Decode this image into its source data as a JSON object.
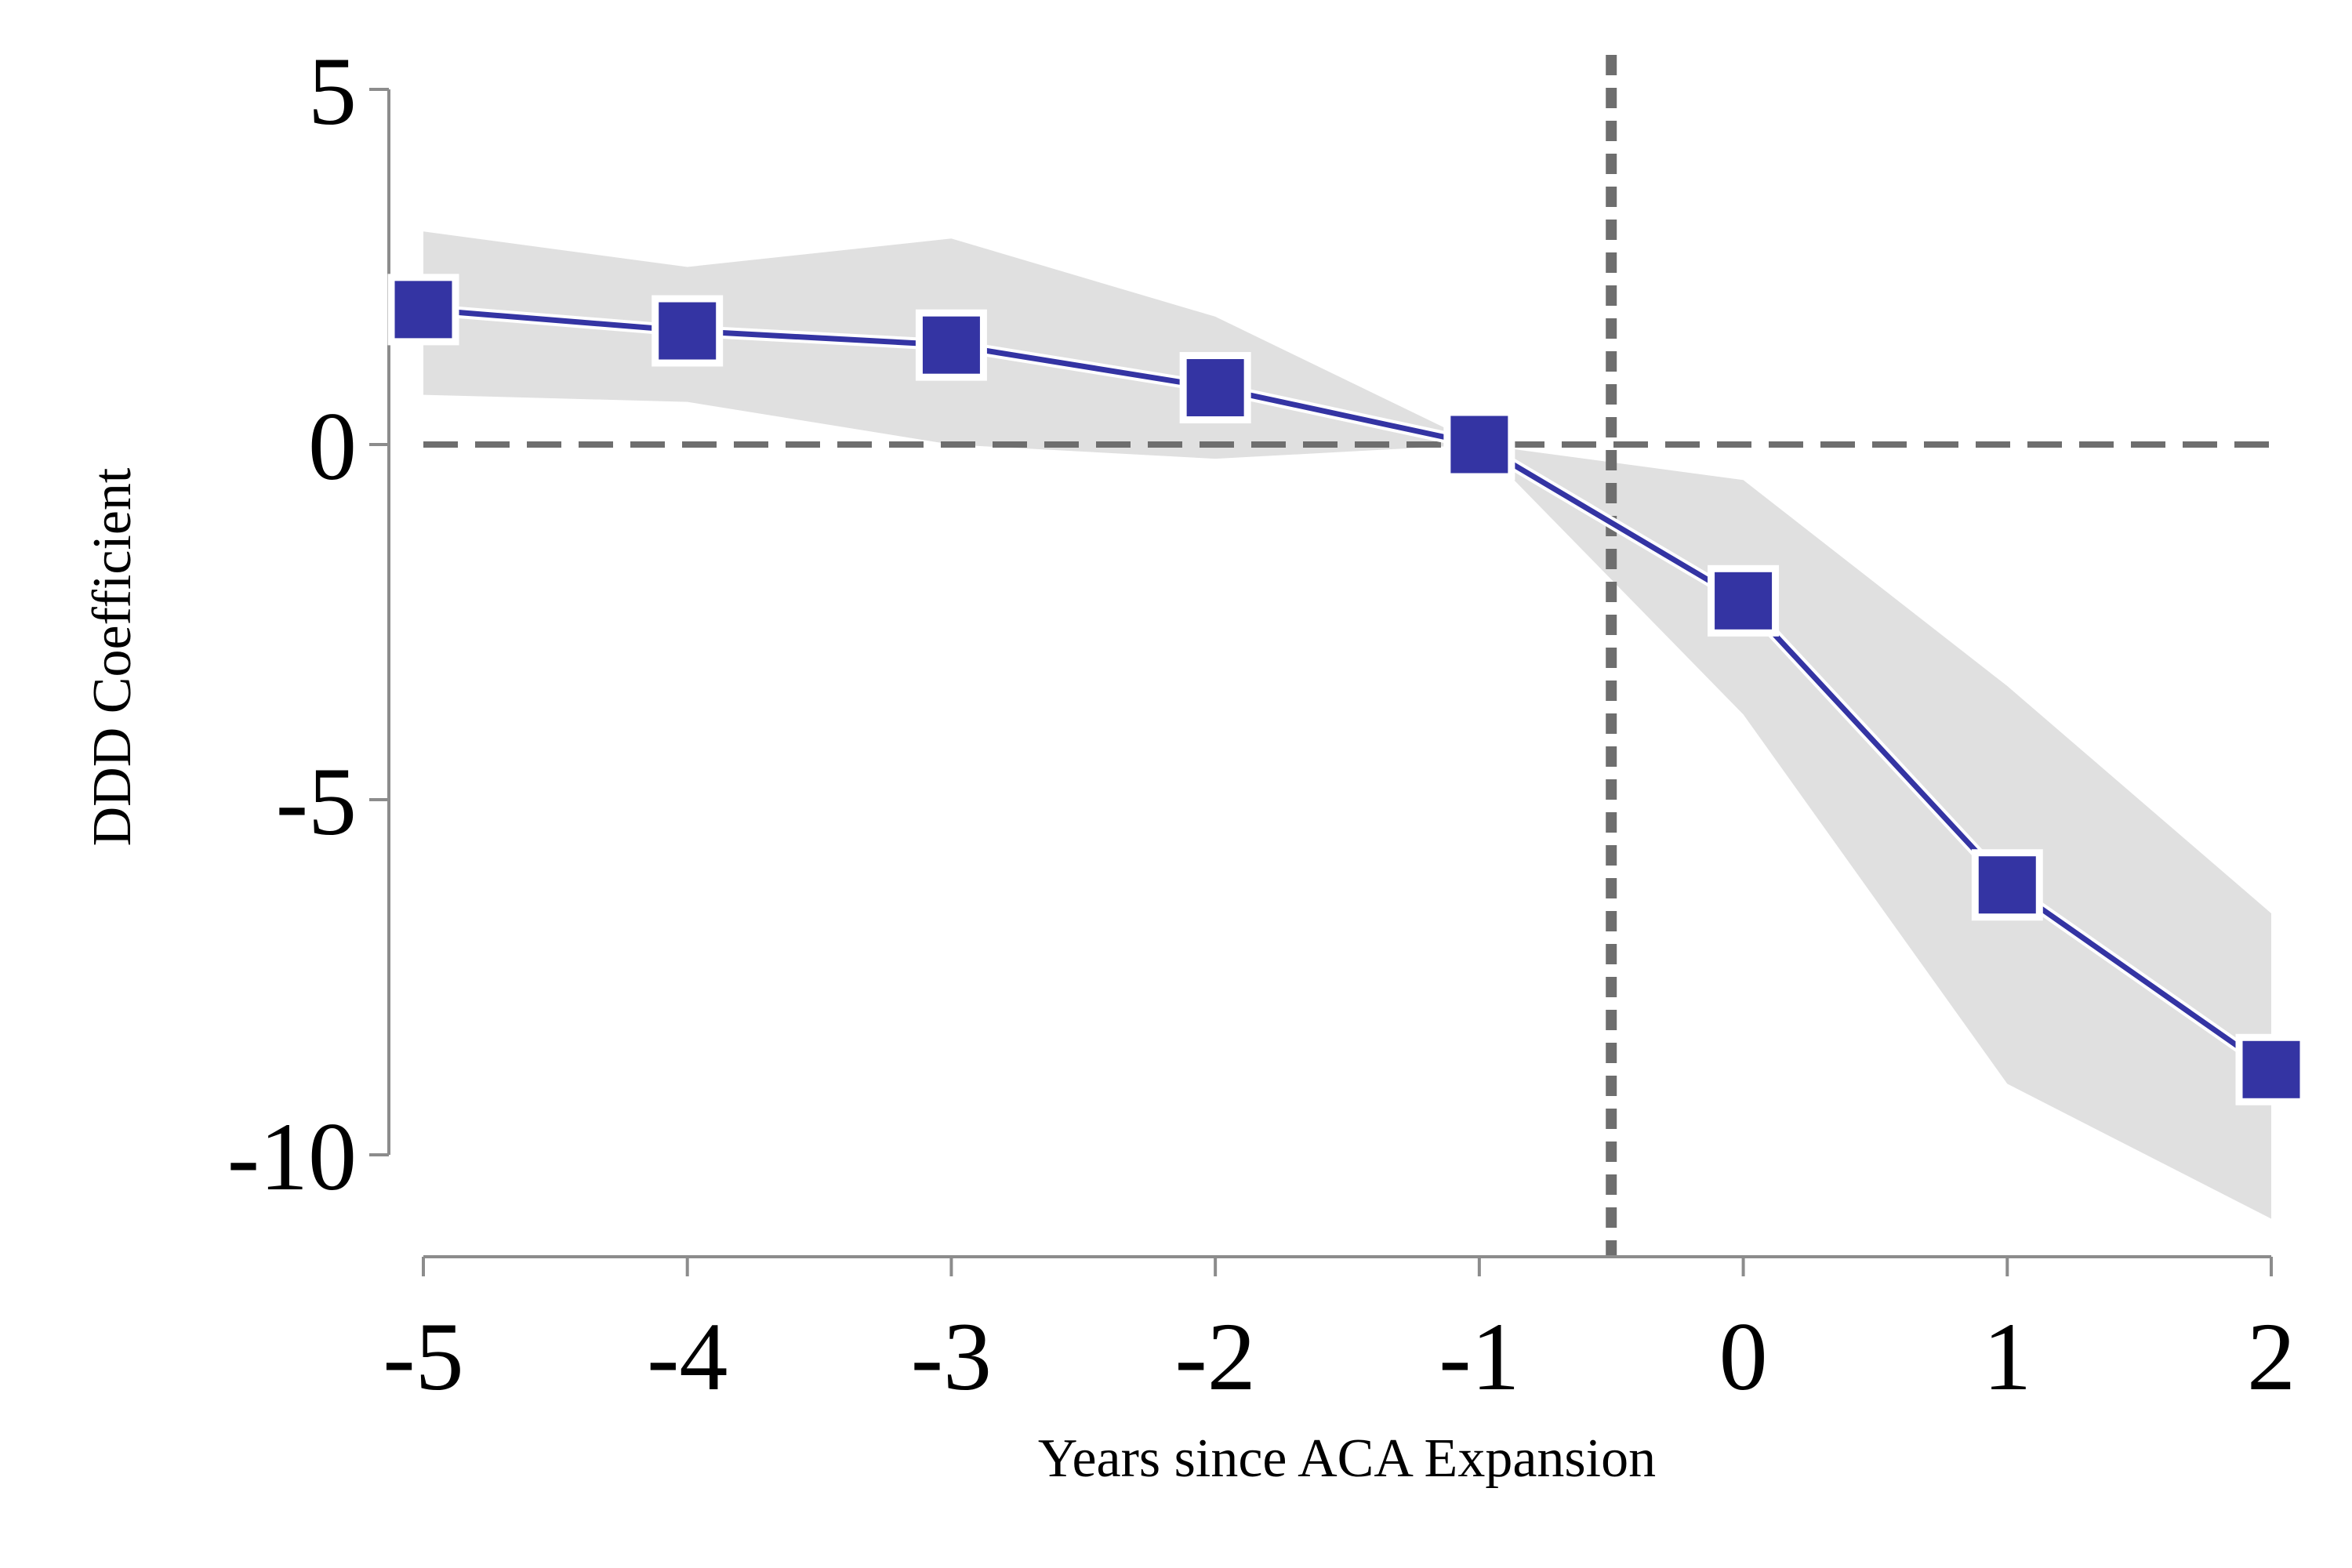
{
  "chart_data": {
    "type": "line",
    "title": "",
    "xlabel": "Years since ACA Expansion",
    "ylabel": "DDD Coefficient",
    "x": [
      -5,
      -4,
      -3,
      -2,
      -1,
      0,
      1,
      2
    ],
    "xticks": [
      "-5",
      "-4",
      "-3",
      "-2",
      "-1",
      "0",
      "1",
      "2"
    ],
    "yticks": [
      "5",
      "0",
      "-5",
      "-10"
    ],
    "xlim": [
      -5,
      2
    ],
    "ylim": [
      -10,
      5
    ],
    "grid": false,
    "series": [
      {
        "type": "line",
        "marker": "square",
        "values": [
          1.9,
          1.6,
          1.4,
          0.8,
          0.0,
          -2.2,
          -6.2,
          -8.8
        ],
        "color": "#3434a3"
      },
      {
        "type": "confidence_band",
        "lower": [
          0.7,
          0.6,
          0.0,
          -0.2,
          0.0,
          -3.8,
          -9.0,
          -10.9
        ],
        "upper": [
          3.0,
          2.5,
          2.9,
          1.8,
          0.0,
          -0.5,
          -3.4,
          -6.6
        ],
        "color": "#e0e0e0"
      }
    ],
    "reference_lines": [
      {
        "axis": "y",
        "value": 0,
        "style": "dashed",
        "color": "#6e6e6e"
      },
      {
        "axis": "x",
        "value": -0.5,
        "style": "dashed",
        "color": "#6e6e6e"
      }
    ]
  }
}
